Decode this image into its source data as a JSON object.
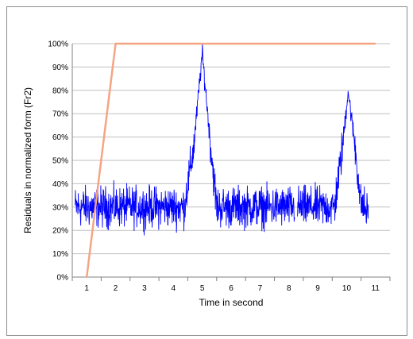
{
  "chart_data": {
    "type": "line",
    "title": "",
    "xlabel": "Time in second",
    "ylabel": "Residuals in normalized form (Fr2)",
    "xticks": [
      1,
      2,
      3,
      4,
      5,
      6,
      7,
      8,
      9,
      10,
      11
    ],
    "yticks": [
      "0%",
      "10%",
      "20%",
      "30%",
      "40%",
      "50%",
      "60%",
      "70%",
      "80%",
      "90%",
      "100%"
    ],
    "xlim": [
      0.5,
      11.5
    ],
    "ylim": [
      0,
      100
    ],
    "grid": "horizontal",
    "legend": "none",
    "series": [
      {
        "color": "#0000ff",
        "style": "noisy",
        "noise_amplitude": 8,
        "segments": [
          {
            "x": [
              0.6,
              4.4
            ],
            "y": [
              30,
              30
            ]
          },
          {
            "x": [
              4.4,
              4.7,
              5.0,
              5.3,
              5.5
            ],
            "y": [
              32,
              55,
              96,
              55,
              30
            ]
          },
          {
            "x": [
              5.5,
              8.2
            ],
            "y": [
              30,
              30
            ]
          },
          {
            "x": [
              8.3,
              9.6
            ],
            "y": [
              30,
              30
            ]
          },
          {
            "x": [
              9.6,
              9.85,
              10.05,
              10.3,
              10.5
            ],
            "y": [
              32,
              55,
              80,
              55,
              30
            ]
          },
          {
            "x": [
              10.5,
              10.75
            ],
            "y": [
              32,
              27
            ]
          }
        ]
      },
      {
        "color": "#f4a582",
        "style": "line",
        "x": [
          1.0,
          2.0,
          11.0
        ],
        "y": [
          0,
          100,
          100
        ]
      }
    ]
  }
}
